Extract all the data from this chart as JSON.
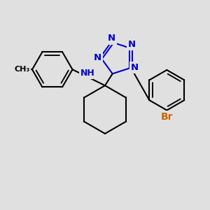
{
  "background_color": "#e0e0e0",
  "bond_color": "#000000",
  "nitrogen_color": "#0000cc",
  "bromine_color": "#cc6600",
  "lw": 1.5,
  "fs": 9.5,
  "xlim": [
    -4.5,
    4.5
  ],
  "ylim": [
    -3.5,
    3.5
  ]
}
